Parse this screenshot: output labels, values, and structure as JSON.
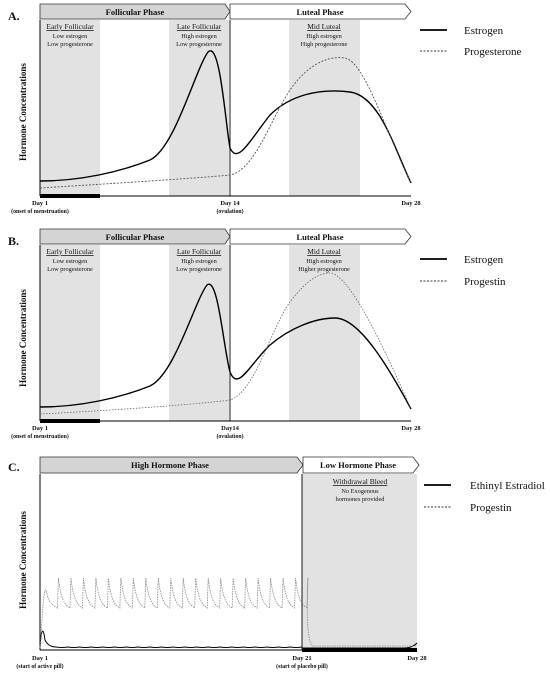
{
  "panels": [
    {
      "label": "A.",
      "ylabel": "Hormone Concentrations",
      "phases": [
        {
          "name": "Follicular Phase"
        },
        {
          "name": "Luteal Phase"
        }
      ],
      "bands": [
        {
          "title": "Early Follicular",
          "lines": [
            "Low estrogen",
            "Low progesterone"
          ]
        },
        {
          "title": "Late Follicular",
          "lines": [
            "High estrogen",
            "Low progesterone"
          ]
        },
        {
          "title": "Mid Luteal",
          "lines": [
            "High estrogen",
            "High progesterone"
          ]
        }
      ],
      "ticks": [
        {
          "label": "Day 1",
          "sub": "(onset of menstruation)"
        },
        {
          "label": "Day 14",
          "sub": "(ovulation)"
        },
        {
          "label": "Day 28",
          "sub": ""
        }
      ],
      "legend": [
        {
          "name": "Estrogen",
          "style": "solid"
        },
        {
          "name": "Progesterone",
          "style": "dashed"
        }
      ]
    },
    {
      "label": "B.",
      "ylabel": "Hormone Concentrations",
      "phases": [
        {
          "name": "Follicular Phase"
        },
        {
          "name": "Luteal Phase"
        }
      ],
      "bands": [
        {
          "title": "Early Follicular",
          "lines": [
            "Low estrogen",
            "Low progesterone"
          ]
        },
        {
          "title": "Late Follicular",
          "lines": [
            "High estrogen",
            "Low progesterone"
          ]
        },
        {
          "title": "Mid Luteal",
          "lines": [
            "High estrogen",
            "Higher progesterone"
          ]
        }
      ],
      "ticks": [
        {
          "label": "Day 1",
          "sub": "(onset of menstruation)"
        },
        {
          "label": "Day14",
          "sub": "(ovulation)"
        },
        {
          "label": "Day 28",
          "sub": ""
        }
      ],
      "legend": [
        {
          "name": "Estrogen",
          "style": "solid"
        },
        {
          "name": "Progestin",
          "style": "dashed"
        }
      ]
    },
    {
      "label": "C.",
      "ylabel": "Hormone Concentrations",
      "phases": [
        {
          "name": "High Hormone Phase"
        },
        {
          "name": "Low Hormone Phase"
        }
      ],
      "bands": [
        {
          "title": "Withdrawal Bleed",
          "lines": [
            "No Exogenous",
            "hormones provided"
          ]
        }
      ],
      "ticks": [
        {
          "label": "Day 1",
          "sub": "(start of active pill)"
        },
        {
          "label": "Day 21",
          "sub": "(start of placebo pill)"
        },
        {
          "label": "Day 28",
          "sub": ""
        }
      ],
      "legend": [
        {
          "name": "Ethinyl Estradiol",
          "style": "solid"
        },
        {
          "name": "Progestin",
          "style": "dashed"
        }
      ]
    }
  ],
  "colors": {
    "band": "#e2e2e2",
    "phase_fill": "#d4d4d4",
    "menses_bar": "#000000"
  }
}
